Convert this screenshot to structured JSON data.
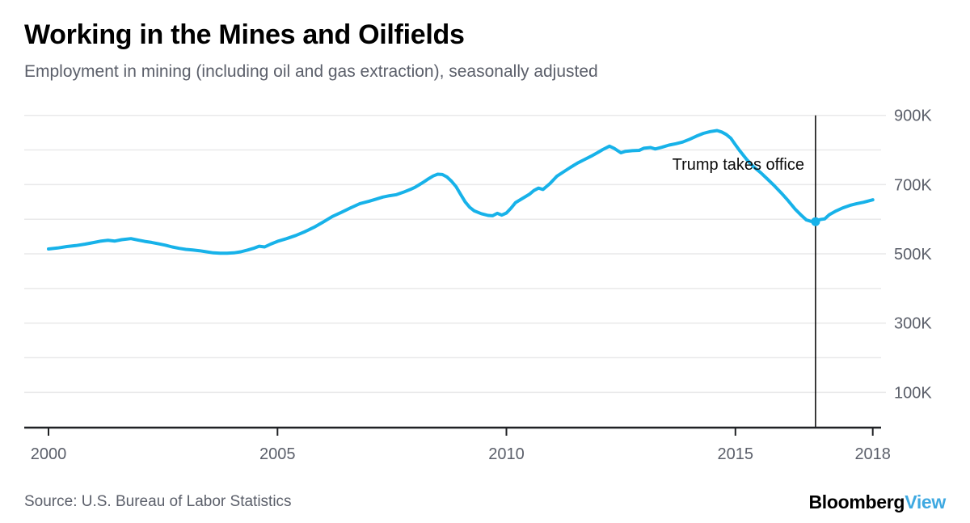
{
  "header": {
    "title": "Working in the Mines and Oilfields",
    "subtitle": "Employment in mining (including oil and gas extraction), seasonally adjusted"
  },
  "annotation": {
    "label": "Trump takes office"
  },
  "footer": {
    "source": "Source: U.S. Bureau of Labor Statistics",
    "logo_black": "Bloomberg",
    "logo_accent": "View"
  },
  "colors": {
    "line": "#17b2e9",
    "grid": "#e9e9ea",
    "axis": "#1f2124",
    "text_gray": "#5b5f6a",
    "annotation_line": "#000000",
    "logo_accent": "#3fa9e1"
  },
  "chart_data": {
    "type": "line",
    "title": "Working in the Mines and Oilfields",
    "subtitle": "Employment in mining (including oil and gas extraction), seasonally adjusted",
    "unit": "thousands of employees",
    "ylim": [
      0,
      900
    ],
    "xlim": [
      2000,
      2018
    ],
    "grid": "horizontal, every 100K",
    "legend": "none",
    "y_ticks": [
      {
        "value": 900,
        "label": "900K"
      },
      {
        "value": 700,
        "label": "700K"
      },
      {
        "value": 500,
        "label": "500K"
      },
      {
        "value": 300,
        "label": "300K"
      },
      {
        "value": 100,
        "label": "100K"
      }
    ],
    "x_ticks": [
      {
        "year": 2000,
        "label": "2000"
      },
      {
        "year": 2005,
        "label": "2005"
      },
      {
        "year": 2010,
        "label": "2010"
      },
      {
        "year": 2015,
        "label": "2015"
      },
      {
        "year": 2018,
        "label": "2018"
      }
    ],
    "annotation": {
      "label": "Trump takes office",
      "x_year": 2016.75,
      "marker_value": 593
    },
    "series": [
      {
        "name": "Mining employment (incl. oil and gas extraction), seasonally adjusted (thousands)",
        "points": [
          [
            2000.0,
            514
          ],
          [
            2000.2,
            517
          ],
          [
            2000.4,
            521
          ],
          [
            2000.6,
            524
          ],
          [
            2000.8,
            528
          ],
          [
            2001.0,
            533
          ],
          [
            2001.15,
            537
          ],
          [
            2001.3,
            539
          ],
          [
            2001.45,
            537
          ],
          [
            2001.6,
            541
          ],
          [
            2001.8,
            544
          ],
          [
            2001.95,
            540
          ],
          [
            2002.1,
            536
          ],
          [
            2002.25,
            533
          ],
          [
            2002.4,
            529
          ],
          [
            2002.55,
            525
          ],
          [
            2002.7,
            520
          ],
          [
            2002.85,
            516
          ],
          [
            2003.0,
            513
          ],
          [
            2003.15,
            511
          ],
          [
            2003.3,
            509
          ],
          [
            2003.45,
            506
          ],
          [
            2003.6,
            503
          ],
          [
            2003.75,
            502
          ],
          [
            2003.9,
            502
          ],
          [
            2004.05,
            503
          ],
          [
            2004.2,
            506
          ],
          [
            2004.35,
            511
          ],
          [
            2004.5,
            517
          ],
          [
            2004.6,
            522
          ],
          [
            2004.72,
            520
          ],
          [
            2004.85,
            528
          ],
          [
            2005.0,
            536
          ],
          [
            2005.2,
            544
          ],
          [
            2005.4,
            553
          ],
          [
            2005.6,
            564
          ],
          [
            2005.8,
            577
          ],
          [
            2006.0,
            592
          ],
          [
            2006.2,
            608
          ],
          [
            2006.4,
            620
          ],
          [
            2006.6,
            633
          ],
          [
            2006.8,
            645
          ],
          [
            2007.0,
            652
          ],
          [
            2007.15,
            658
          ],
          [
            2007.3,
            664
          ],
          [
            2007.45,
            668
          ],
          [
            2007.6,
            671
          ],
          [
            2007.75,
            678
          ],
          [
            2007.9,
            686
          ],
          [
            2008.0,
            692
          ],
          [
            2008.1,
            700
          ],
          [
            2008.2,
            708
          ],
          [
            2008.3,
            717
          ],
          [
            2008.4,
            725
          ],
          [
            2008.5,
            730
          ],
          [
            2008.6,
            729
          ],
          [
            2008.7,
            722
          ],
          [
            2008.8,
            710
          ],
          [
            2008.9,
            694
          ],
          [
            2009.0,
            672
          ],
          [
            2009.1,
            650
          ],
          [
            2009.2,
            634
          ],
          [
            2009.3,
            624
          ],
          [
            2009.45,
            616
          ],
          [
            2009.6,
            611
          ],
          [
            2009.7,
            610
          ],
          [
            2009.8,
            617
          ],
          [
            2009.9,
            612
          ],
          [
            2010.0,
            618
          ],
          [
            2010.1,
            632
          ],
          [
            2010.2,
            648
          ],
          [
            2010.35,
            660
          ],
          [
            2010.5,
            672
          ],
          [
            2010.6,
            683
          ],
          [
            2010.7,
            690
          ],
          [
            2010.8,
            686
          ],
          [
            2010.95,
            703
          ],
          [
            2011.1,
            724
          ],
          [
            2011.25,
            737
          ],
          [
            2011.4,
            750
          ],
          [
            2011.55,
            762
          ],
          [
            2011.7,
            772
          ],
          [
            2011.85,
            782
          ],
          [
            2012.0,
            793
          ],
          [
            2012.1,
            801
          ],
          [
            2012.25,
            811
          ],
          [
            2012.35,
            805
          ],
          [
            2012.5,
            792
          ],
          [
            2012.6,
            796
          ],
          [
            2012.75,
            798
          ],
          [
            2012.9,
            799
          ],
          [
            2013.0,
            805
          ],
          [
            2013.15,
            807
          ],
          [
            2013.25,
            803
          ],
          [
            2013.4,
            808
          ],
          [
            2013.55,
            814
          ],
          [
            2013.7,
            818
          ],
          [
            2013.85,
            823
          ],
          [
            2014.0,
            831
          ],
          [
            2014.15,
            840
          ],
          [
            2014.3,
            848
          ],
          [
            2014.45,
            853
          ],
          [
            2014.6,
            856
          ],
          [
            2014.7,
            852
          ],
          [
            2014.8,
            845
          ],
          [
            2014.9,
            834
          ],
          [
            2015.0,
            815
          ],
          [
            2015.1,
            797
          ],
          [
            2015.25,
            772
          ],
          [
            2015.4,
            751
          ],
          [
            2015.55,
            735
          ],
          [
            2015.7,
            716
          ],
          [
            2015.85,
            697
          ],
          [
            2016.0,
            676
          ],
          [
            2016.15,
            654
          ],
          [
            2016.3,
            630
          ],
          [
            2016.45,
            610
          ],
          [
            2016.55,
            598
          ],
          [
            2016.65,
            594
          ],
          [
            2016.75,
            593
          ],
          [
            2016.85,
            599
          ],
          [
            2016.95,
            601
          ],
          [
            2017.05,
            613
          ],
          [
            2017.2,
            624
          ],
          [
            2017.35,
            633
          ],
          [
            2017.5,
            640
          ],
          [
            2017.65,
            645
          ],
          [
            2017.8,
            649
          ],
          [
            2018.0,
            656
          ]
        ]
      }
    ]
  }
}
